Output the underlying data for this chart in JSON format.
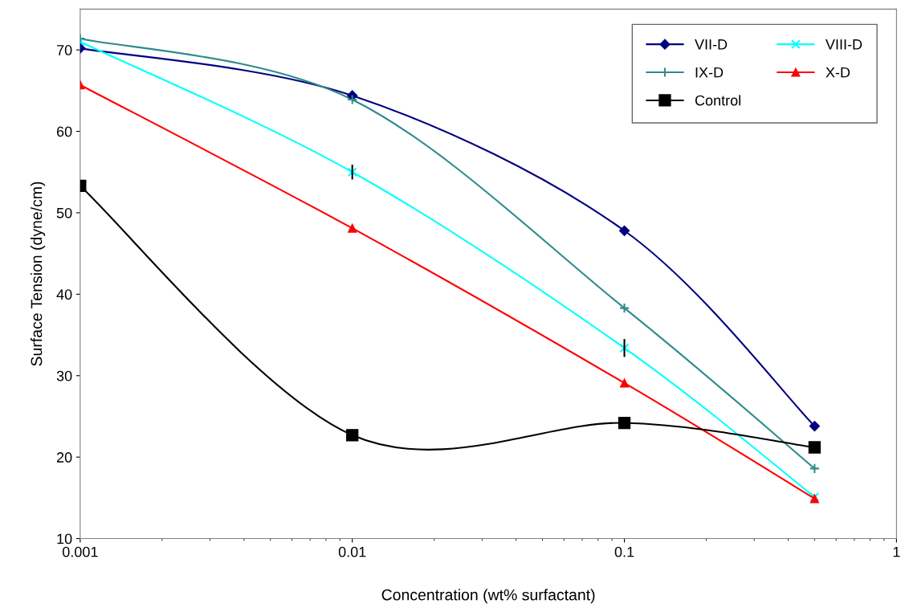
{
  "chart_data": {
    "type": "line",
    "xlabel": "Concentration (wt% surfactant)",
    "ylabel": "Surface Tension (dyne/cm)",
    "log": "x",
    "xlim": [
      0.001,
      1
    ],
    "xticks": [
      0.001,
      0.01,
      0.1,
      1
    ],
    "ylim": [
      10,
      75
    ],
    "yticks": [
      10,
      20,
      30,
      40,
      50,
      60,
      70
    ],
    "grid": false,
    "legend": "top right",
    "x": [
      0.001,
      0.01,
      0.1,
      0.5
    ],
    "series": [
      {
        "name": "VII-D",
        "color": "#000080",
        "marker": "diamond",
        "values": [
          70.2,
          64.4,
          47.8,
          23.8
        ]
      },
      {
        "name": "VIII-D",
        "color": "#00ffff",
        "marker": "cross",
        "values": [
          71.0,
          55.0,
          33.4,
          15.1
        ],
        "errors": [
          null,
          0.8,
          1.0,
          null
        ]
      },
      {
        "name": "IX-D",
        "color": "#2e8b8b",
        "marker": "plus",
        "values": [
          71.4,
          63.9,
          38.3,
          18.6
        ]
      },
      {
        "name": "X-D",
        "color": "#ff0000",
        "marker": "triangle",
        "values": [
          65.7,
          48.1,
          29.1,
          14.9
        ]
      },
      {
        "name": "Control",
        "color": "#000000",
        "marker": "square",
        "values": [
          53.3,
          22.7,
          24.2,
          21.2
        ]
      }
    ]
  }
}
